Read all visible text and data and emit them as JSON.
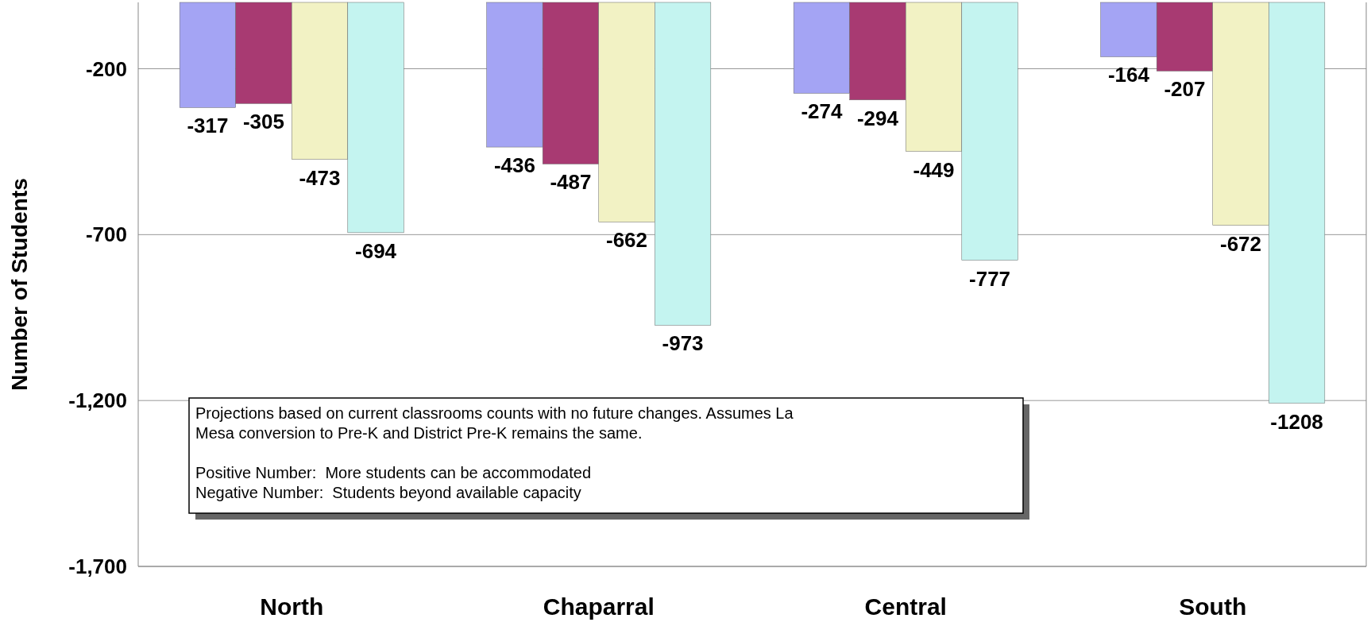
{
  "chart_data": {
    "type": "bar",
    "ylabel": "Number of Students",
    "categories": [
      "North",
      "Chaparral",
      "Central",
      "South"
    ],
    "series": [
      {
        "color": "#a4a4f4",
        "values": [
          -317,
          -436,
          -274,
          -164
        ]
      },
      {
        "color": "#a83a72",
        "values": [
          -305,
          -487,
          -294,
          -207
        ]
      },
      {
        "color": "#f2f2c4",
        "values": [
          -473,
          -662,
          -449,
          -672
        ]
      },
      {
        "color": "#c4f4f0",
        "values": [
          -694,
          -973,
          -777,
          -1208
        ]
      }
    ],
    "ylim": [
      -1700,
      0
    ],
    "yticks": [
      {
        "value": -1700,
        "label": "-1,700"
      },
      {
        "value": -1200,
        "label": "-1,200"
      },
      -700,
      -200
    ],
    "grid": "y",
    "data_labels": true,
    "annotations": [
      "Projections based on current classrooms counts with no future changes. Assumes La Mesa conversion to Pre-K and District Pre-K remains the same.",
      "Positive Number:  More students can be accommodated",
      "Negative Number:  Students beyond available capacity"
    ]
  }
}
